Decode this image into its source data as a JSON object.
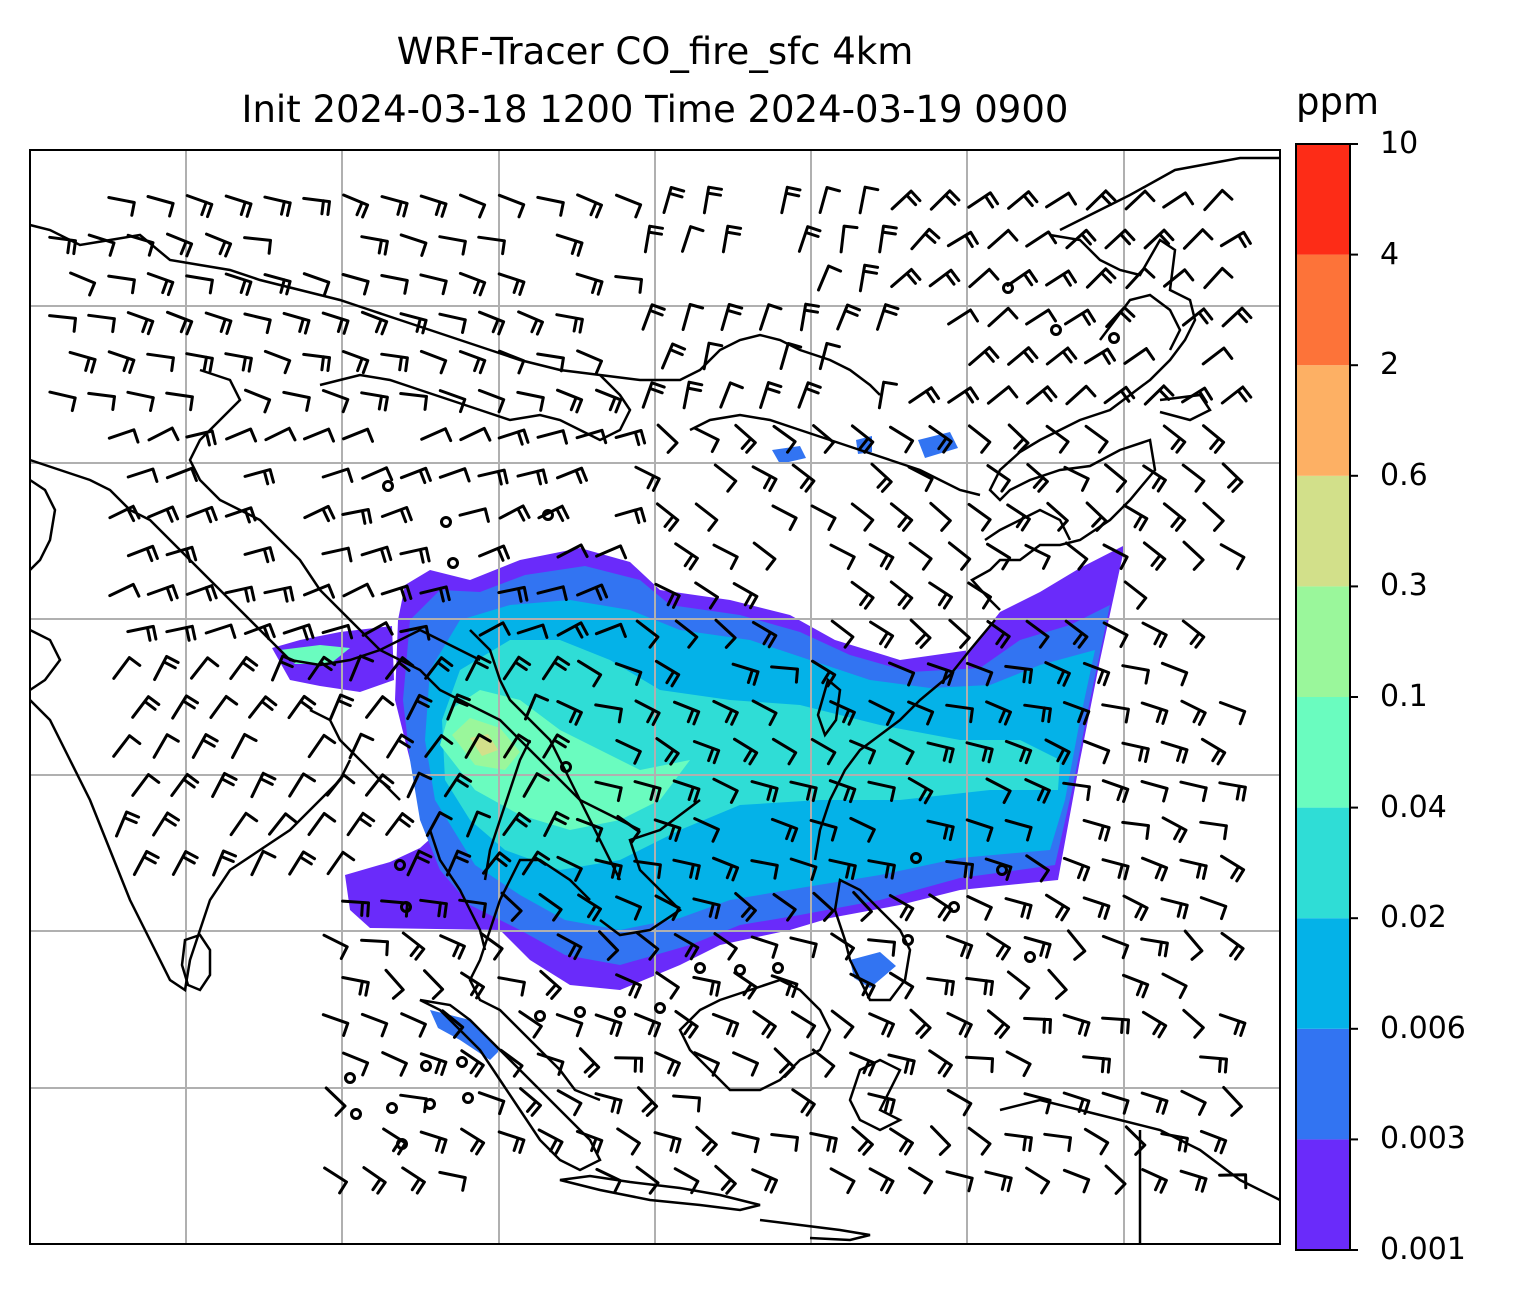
{
  "title": {
    "line1": "WRF-Tracer CO_fire_sfc 4km",
    "line2": "Init 2024-03-18 1200 Time 2024-03-19 0900"
  },
  "colorbar": {
    "unit": "ppm",
    "levels": [
      "0.001",
      "0.003",
      "0.006",
      "0.02",
      "0.04",
      "0.1",
      "0.3",
      "0.6",
      "2",
      "4",
      "10"
    ],
    "colors": [
      "#6a2bfa",
      "#3274f2",
      "#04b2e8",
      "#2fddd6",
      "#6afcbf",
      "#9af79b",
      "#d2e08a",
      "#fdb064",
      "#fd7339",
      "#fd2c17"
    ]
  },
  "map": {
    "gridlines": true,
    "coastline_color": "#000000",
    "grid_color": "#b0b0b0"
  }
}
